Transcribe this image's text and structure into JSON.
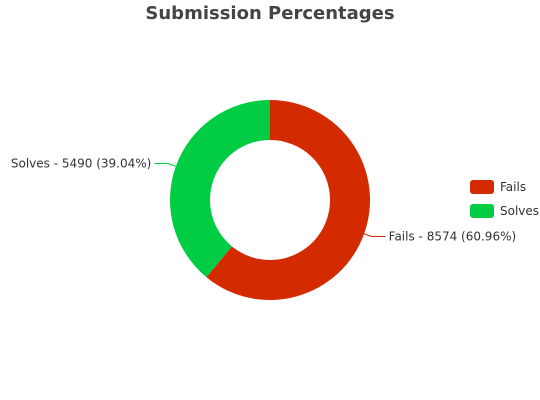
{
  "chart_data": {
    "type": "pie",
    "subtype": "donut",
    "title": "Submission Percentages",
    "series": [
      {
        "name": "Fails",
        "value": 8574,
        "percent": 60.96,
        "color": "#d42a00",
        "label": "Fails - 8574 (60.96%)"
      },
      {
        "name": "Solves",
        "value": 5490,
        "percent": 39.04,
        "color": "#00cc44",
        "label": "Solves - 5490 (39.04%)"
      }
    ],
    "legend": {
      "position": "right",
      "items": [
        "Fails",
        "Solves"
      ]
    }
  },
  "colors": {
    "title": "#444444",
    "label_text": "#333333",
    "background": "#ffffff"
  }
}
